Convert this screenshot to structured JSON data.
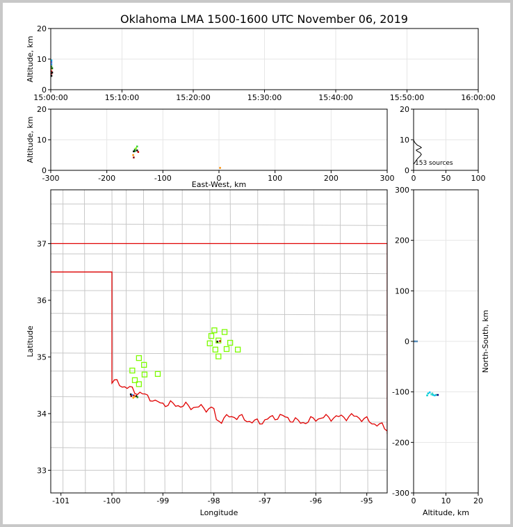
{
  "title": "Oklahoma LMA 1500-1600 UTC November 06, 2019",
  "source_count_label": "153 sources",
  "colors": {
    "state_border": "#e00000",
    "county": "#c8c8c8",
    "grid": "#e6e6e6",
    "station": "#7cfc00"
  },
  "chart_data": [
    {
      "id": "time_altitude",
      "type": "scatter",
      "ylabel": "Altitude, km",
      "ylim": [
        0,
        20
      ],
      "y_ticks": [
        0,
        10,
        20
      ],
      "x_ticks": [
        "15:00:00",
        "15:10:00",
        "15:20:00",
        "15:30:00",
        "15:40:00",
        "15:50:00",
        "16:00:00"
      ],
      "x_tick_minutes": [
        0,
        10,
        20,
        30,
        40,
        50,
        60
      ],
      "xlim_minutes": [
        0,
        60
      ],
      "points": [
        {
          "x": 0.1,
          "y": 4.5,
          "c": "#000000"
        },
        {
          "x": 0.1,
          "y": 5.2,
          "c": "#8b0000"
        },
        {
          "x": 0.1,
          "y": 6.0,
          "c": "#cc0000"
        },
        {
          "x": 0.1,
          "y": 6.8,
          "c": "#ff8c00"
        },
        {
          "x": 0.1,
          "y": 7.6,
          "c": "#228b22"
        },
        {
          "x": 0.1,
          "y": 8.3,
          "c": "#1e90ff"
        },
        {
          "x": 0.1,
          "y": 9.0,
          "c": "#4169e1"
        },
        {
          "x": 0.1,
          "y": 9.6,
          "c": "#00bfff"
        },
        {
          "x": 0.2,
          "y": 5.6,
          "c": "#000000"
        },
        {
          "x": 0.2,
          "y": 7.0,
          "c": "#006400"
        }
      ]
    },
    {
      "id": "ew_altitude",
      "type": "scatter",
      "xlabel": "East-West, km",
      "ylabel": "Altitude, km",
      "xlim": [
        -300,
        300
      ],
      "ylim": [
        0,
        20
      ],
      "x_ticks": [
        -300,
        -200,
        -100,
        0,
        100,
        200,
        300
      ],
      "y_ticks": [
        0,
        10,
        20
      ],
      "points": [
        {
          "x": -152,
          "y": 6.2,
          "c": "#000000"
        },
        {
          "x": -150,
          "y": 6.8,
          "c": "#228b22"
        },
        {
          "x": -148,
          "y": 7.2,
          "c": "#7cfc00"
        },
        {
          "x": -146,
          "y": 6.5,
          "c": "#000000"
        },
        {
          "x": -144,
          "y": 6.0,
          "c": "#cc0000"
        },
        {
          "x": -153,
          "y": 5.0,
          "c": "#ff8c00"
        },
        {
          "x": -152,
          "y": 4.2,
          "c": "#8b0000"
        },
        {
          "x": -150,
          "y": 6.3,
          "c": "#006400"
        },
        {
          "x": -146,
          "y": 7.8,
          "c": "#32cd32"
        },
        {
          "x": 2,
          "y": 0.8,
          "c": "#ff8c00"
        }
      ]
    },
    {
      "id": "altitude_histogram",
      "type": "line",
      "xlim": [
        0,
        100
      ],
      "ylim": [
        0,
        20
      ],
      "x_ticks": [
        0,
        50,
        100
      ],
      "y_ticks": [
        0,
        10,
        20
      ],
      "x": [
        0,
        2,
        4,
        6,
        8,
        10,
        12,
        10,
        6,
        4,
        8,
        12,
        10,
        6,
        3,
        1,
        0
      ],
      "y": [
        2,
        2.6,
        3.2,
        3.8,
        4.2,
        4.6,
        5.2,
        5.8,
        6.2,
        6.6,
        7.0,
        7.4,
        7.8,
        8.2,
        8.8,
        9.4,
        10
      ]
    },
    {
      "id": "plan_view",
      "type": "scatter",
      "xlabel": "Longitude",
      "ylabel": "Latitude",
      "xlim": [
        -101.2,
        -94.6
      ],
      "ylim": [
        32.6,
        37.95
      ],
      "x_ticks": [
        -101,
        -100,
        -99,
        -98,
        -97,
        -96,
        -95
      ],
      "y_ticks": [
        33,
        34,
        35,
        36,
        37
      ],
      "stations": [
        {
          "lon": -97.99,
          "lat": 35.47
        },
        {
          "lon": -97.79,
          "lat": 35.44
        },
        {
          "lon": -98.05,
          "lat": 35.37
        },
        {
          "lon": -97.91,
          "lat": 35.29
        },
        {
          "lon": -98.08,
          "lat": 35.24
        },
        {
          "lon": -97.68,
          "lat": 35.25
        },
        {
          "lon": -97.97,
          "lat": 35.13
        },
        {
          "lon": -97.75,
          "lat": 35.14
        },
        {
          "lon": -97.53,
          "lat": 35.13
        },
        {
          "lon": -97.91,
          "lat": 35.01
        },
        {
          "lon": -99.47,
          "lat": 34.98
        },
        {
          "lon": -99.37,
          "lat": 34.86
        },
        {
          "lon": -99.6,
          "lat": 34.76
        },
        {
          "lon": -99.36,
          "lat": 34.69
        },
        {
          "lon": -99.1,
          "lat": 34.7
        },
        {
          "lon": -99.55,
          "lat": 34.59
        },
        {
          "lon": -99.47,
          "lat": 34.52
        }
      ],
      "points": [
        {
          "lon": -99.63,
          "lat": 34.34,
          "c": "#000000"
        },
        {
          "lon": -99.6,
          "lat": 34.33,
          "c": "#1e90ff"
        },
        {
          "lon": -99.57,
          "lat": 34.32,
          "c": "#cc0000"
        },
        {
          "lon": -99.55,
          "lat": 34.3,
          "c": "#ff8c00"
        },
        {
          "lon": -99.52,
          "lat": 34.31,
          "c": "#000000"
        },
        {
          "lon": -99.58,
          "lat": 34.28,
          "c": "#ffa500"
        },
        {
          "lon": -99.5,
          "lat": 34.29,
          "c": "#228b22"
        },
        {
          "lon": -99.62,
          "lat": 34.31,
          "c": "#8b0000"
        },
        {
          "lon": -97.93,
          "lat": 35.27,
          "c": "#000000"
        },
        {
          "lon": -97.88,
          "lat": 35.28,
          "c": "#cc0000"
        }
      ]
    },
    {
      "id": "altitude_ns",
      "type": "scatter",
      "xlabel": "Altitude, km",
      "ylabel": "North-South, km",
      "xlim": [
        0,
        20
      ],
      "ylim": [
        -300,
        300
      ],
      "x_ticks": [
        0,
        10,
        20
      ],
      "y_ticks": [
        -300,
        -200,
        -100,
        0,
        100,
        200,
        300
      ],
      "points": [
        {
          "x": 4.5,
          "y": -103,
          "c": "#00ced1"
        },
        {
          "x": 5.0,
          "y": -101,
          "c": "#00bfff"
        },
        {
          "x": 5.5,
          "y": -105,
          "c": "#40e0d0"
        },
        {
          "x": 6.0,
          "y": -106,
          "c": "#00ced1"
        },
        {
          "x": 6.5,
          "y": -107,
          "c": "#00bfff"
        },
        {
          "x": 7.0,
          "y": -106,
          "c": "#20b2aa"
        },
        {
          "x": 7.5,
          "y": -106,
          "c": "#000080"
        },
        {
          "x": 4.2,
          "y": -107,
          "c": "#00ced1"
        },
        {
          "x": 5.8,
          "y": -103,
          "c": "#48d1cc"
        },
        {
          "x": 0.4,
          "y": 0,
          "c": "#4682b4"
        },
        {
          "x": 1.0,
          "y": 0,
          "c": "#4682b4"
        }
      ]
    }
  ]
}
